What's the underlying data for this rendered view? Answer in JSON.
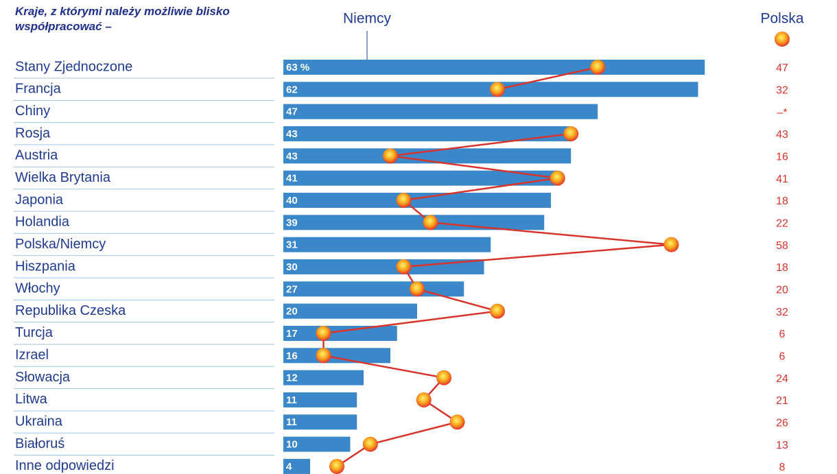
{
  "chart_data": {
    "type": "bar-line",
    "title": "Kraje, z którymi należy możliwie blisko współpracować –",
    "categories": [
      "Stany Zjednoczone",
      "Francja",
      "Chiny",
      "Rosja",
      "Austria",
      "Wielka Brytania",
      "Japonia",
      "Holandia",
      "Polska/Niemcy",
      "Hiszpania",
      "Włochy",
      "Republika Czeska",
      "Turcja",
      "Izrael",
      "Słowacja",
      "Litwa",
      "Ukraina",
      "Białoruś",
      "Inne odpowiedzi"
    ],
    "series": [
      {
        "name": "Niemcy",
        "color": "#3a87c9",
        "kind": "bar",
        "values": [
          63,
          62,
          47,
          43,
          43,
          41,
          40,
          39,
          31,
          30,
          27,
          20,
          17,
          16,
          12,
          11,
          11,
          10,
          4
        ],
        "value_labels": [
          "63 %",
          "62",
          "47",
          "43",
          "43",
          "41",
          "40",
          "39",
          "31",
          "30",
          "27",
          "20",
          "17",
          "16",
          "12",
          "11",
          "11",
          "10",
          "4"
        ]
      },
      {
        "name": "Polska",
        "color": "#d9342b",
        "kind": "line",
        "values": [
          47,
          32,
          null,
          43,
          16,
          41,
          18,
          22,
          58,
          18,
          20,
          32,
          6,
          6,
          24,
          21,
          26,
          13,
          8
        ],
        "value_labels": [
          "47",
          "32",
          "–*",
          "43",
          "16",
          "41",
          "18",
          "22",
          "58",
          "18",
          "20",
          "32",
          "6",
          "6",
          "24",
          "21",
          "26",
          "13",
          "8"
        ]
      }
    ]
  }
}
